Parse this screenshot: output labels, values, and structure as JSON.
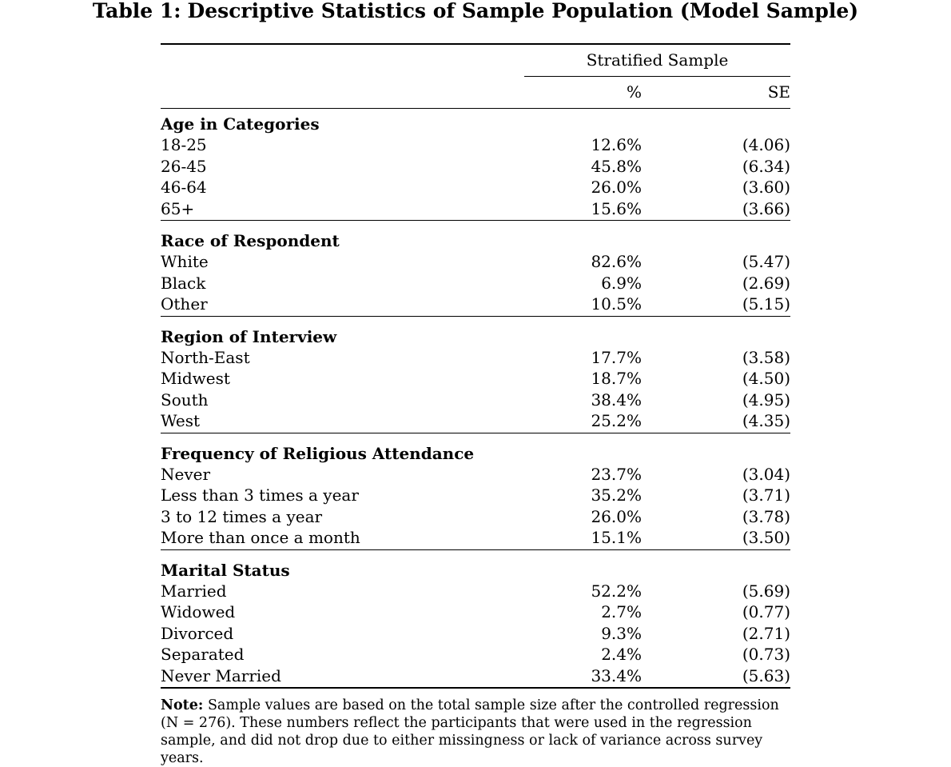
{
  "title": {
    "number": "Table 1:",
    "text": "Descriptive Statistics of Sample Population (Model Sample)"
  },
  "header": {
    "spanner": "Stratified Sample",
    "col_pct": "%",
    "col_se": "SE"
  },
  "sections": [
    {
      "heading": "Age in Categories",
      "rows": [
        {
          "label": "18-25",
          "pct": "12.6%",
          "se": "(4.06)"
        },
        {
          "label": "26-45",
          "pct": "45.8%",
          "se": "(6.34)"
        },
        {
          "label": "46-64",
          "pct": "26.0%",
          "se": "(3.60)"
        },
        {
          "label": "65+",
          "pct": "15.6%",
          "se": "(3.66)"
        }
      ]
    },
    {
      "heading": "Race of Respondent",
      "rows": [
        {
          "label": "White",
          "pct": "82.6%",
          "se": "(5.47)"
        },
        {
          "label": "Black",
          "pct": "6.9%",
          "se": "(2.69)"
        },
        {
          "label": "Other",
          "pct": "10.5%",
          "se": "(5.15)"
        }
      ]
    },
    {
      "heading": "Region of Interview",
      "rows": [
        {
          "label": "North-East",
          "pct": "17.7%",
          "se": "(3.58)"
        },
        {
          "label": "Midwest",
          "pct": "18.7%",
          "se": "(4.50)"
        },
        {
          "label": "South",
          "pct": "38.4%",
          "se": "(4.95)"
        },
        {
          "label": "West",
          "pct": "25.2%",
          "se": "(4.35)"
        }
      ]
    },
    {
      "heading": "Frequency of Religious Attendance",
      "rows": [
        {
          "label": "Never",
          "pct": "23.7%",
          "se": "(3.04)"
        },
        {
          "label": "Less than 3 times a year",
          "pct": "35.2%",
          "se": "(3.71)"
        },
        {
          "label": "3 to 12 times a year",
          "pct": "26.0%",
          "se": "(3.78)"
        },
        {
          "label": "More than once a month",
          "pct": "15.1%",
          "se": "(3.50)"
        }
      ]
    },
    {
      "heading": "Marital Status",
      "rows": [
        {
          "label": "Married",
          "pct": "52.2%",
          "se": "(5.69)"
        },
        {
          "label": "Widowed",
          "pct": "2.7%",
          "se": "(0.77)"
        },
        {
          "label": "Divorced",
          "pct": "9.3%",
          "se": "(2.71)"
        },
        {
          "label": "Separated",
          "pct": "2.4%",
          "se": "(0.73)"
        },
        {
          "label": "Never Married",
          "pct": "33.4%",
          "se": "(5.63)"
        }
      ]
    }
  ],
  "note": {
    "label": "Note:",
    "text": "Sample values are based on the total sample size after the controlled regression (N = 276). These numbers reflect the participants that were used in the regression sample, and did not drop due to either missingness or lack of variance across survey years."
  }
}
